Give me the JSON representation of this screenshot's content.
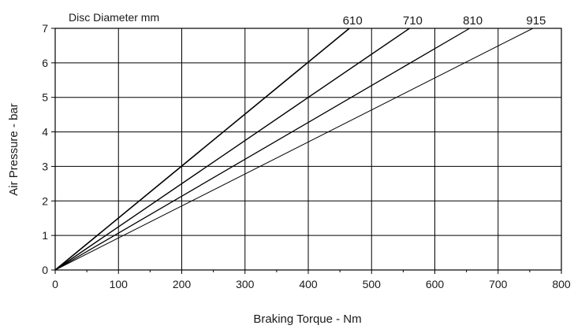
{
  "chart_data": {
    "type": "line",
    "legend_title": "Disc Diameter mm",
    "xlabel": "Braking Torque - Nm",
    "ylabel": "Air Pressure - bar",
    "xlim": [
      0,
      800
    ],
    "ylim": [
      0,
      7
    ],
    "x_ticks": [
      "0",
      "100",
      "200",
      "300",
      "400",
      "500",
      "600",
      "700",
      "800"
    ],
    "y_ticks": [
      "0",
      "1",
      "2",
      "3",
      "4",
      "5",
      "6",
      "7"
    ],
    "grid": true,
    "line_color": "#000000",
    "series": [
      {
        "name": "610",
        "points": [
          [
            0,
            0
          ],
          [
            465,
            7
          ]
        ]
      },
      {
        "name": "710",
        "points": [
          [
            0,
            0
          ],
          [
            560,
            7
          ]
        ]
      },
      {
        "name": "810",
        "points": [
          [
            0,
            0
          ],
          [
            655,
            7
          ]
        ]
      },
      {
        "name": "915",
        "points": [
          [
            0,
            0
          ],
          [
            755,
            7
          ]
        ]
      }
    ]
  }
}
